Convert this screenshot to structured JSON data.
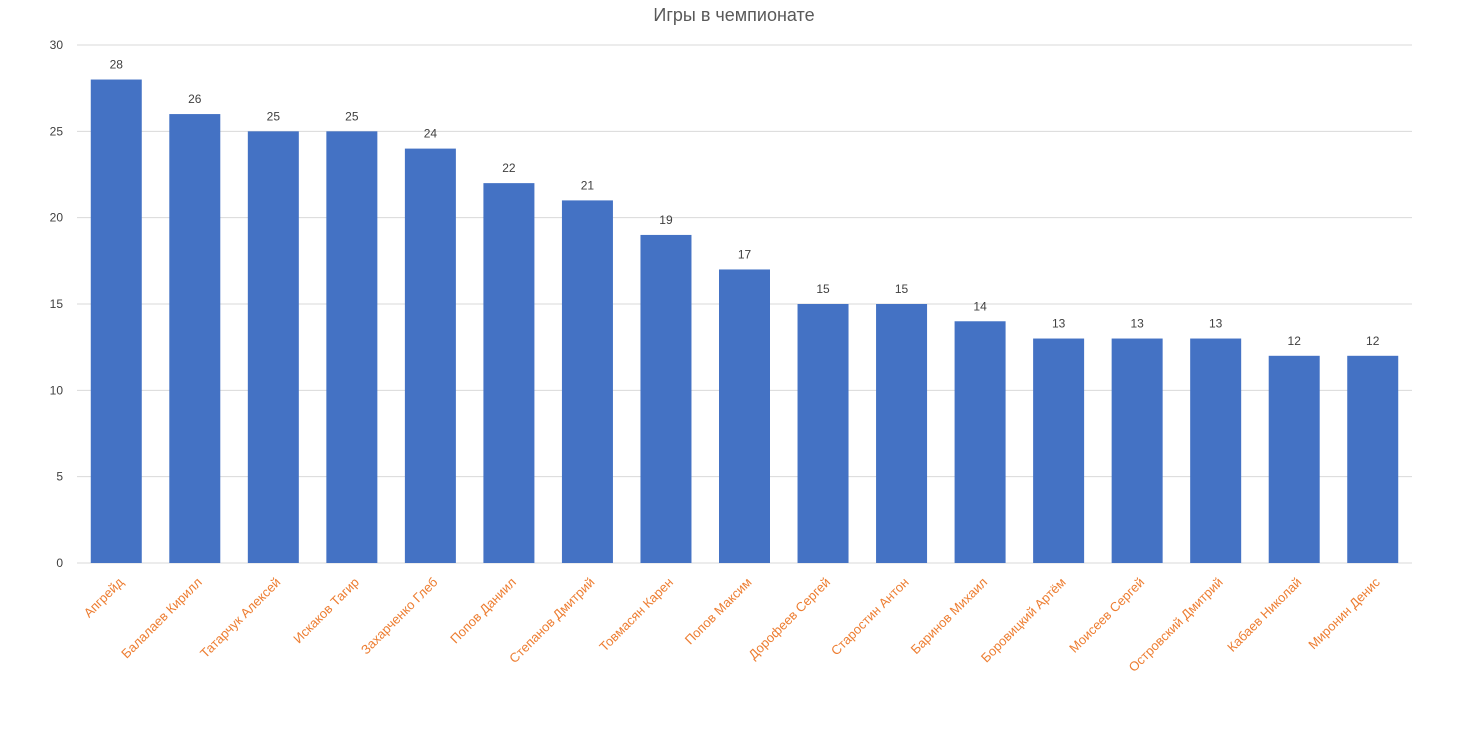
{
  "chart_data": {
    "type": "bar",
    "title": "Игры в чемпионате",
    "xlabel": "",
    "ylabel": "",
    "ylim": [
      0,
      30
    ],
    "yticks": [
      "0",
      "5",
      "10",
      "15",
      "20",
      "25",
      "30"
    ],
    "grid": true,
    "legend": "none",
    "categories": [
      "Апгрейд",
      "Балалаев Кирилл",
      "Татарчук Алексей",
      "Искаков Тагир",
      "Захарченко Глеб",
      "Попов Даниил",
      "Степанов Дмитрий",
      "Товмасян Карен",
      "Попов Максим",
      "Дорофеев Сергей",
      "Старостин Антон",
      "Баринов Михаил",
      "Боровицкий Артём",
      "Моисеев Сергей",
      "Островский Дмитрий",
      "Кабаев Николай",
      "Миронин Денис"
    ],
    "values": [
      28,
      26,
      25,
      25,
      24,
      22,
      21,
      19,
      17,
      15,
      15,
      14,
      13,
      13,
      13,
      12,
      12
    ],
    "colors": {
      "bar": "#4472c4",
      "category_label": "#ed7d31",
      "gridline": "#d9d9d9",
      "text": "#595959"
    }
  }
}
